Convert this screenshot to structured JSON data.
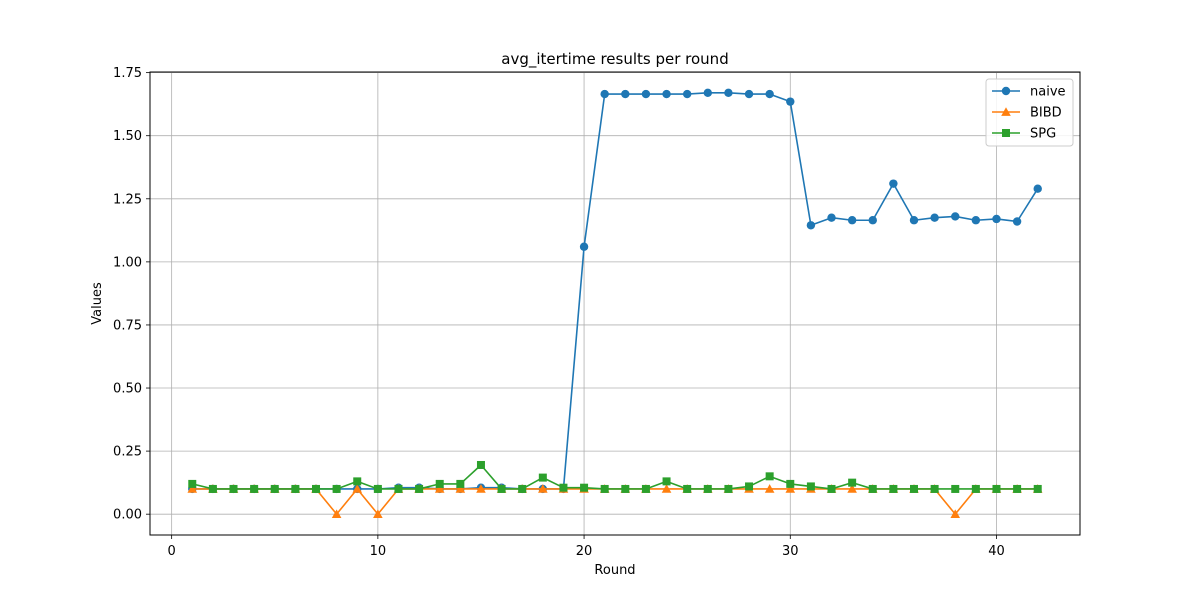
{
  "chart_data": {
    "type": "line",
    "title": "avg_itertime results per round",
    "xlabel": "Round",
    "ylabel": "Values",
    "xlim": [
      -1.05,
      44.05
    ],
    "ylim": [
      -0.0825,
      1.7525
    ],
    "xticks": [
      0,
      10,
      20,
      30,
      40
    ],
    "xtick_labels": [
      "0",
      "10",
      "20",
      "30",
      "40"
    ],
    "yticks": [
      0,
      0.25,
      0.5,
      0.75,
      1.0,
      1.25,
      1.5,
      1.75
    ],
    "ytick_labels": [
      "0.00",
      "0.25",
      "0.50",
      "0.75",
      "1.00",
      "1.25",
      "1.50",
      "1.75"
    ],
    "grid": true,
    "legend_position": "top-right",
    "x": [
      1,
      2,
      3,
      4,
      5,
      6,
      7,
      8,
      9,
      10,
      11,
      12,
      13,
      14,
      15,
      16,
      17,
      18,
      19,
      20,
      21,
      22,
      23,
      24,
      25,
      26,
      27,
      28,
      29,
      30,
      31,
      32,
      33,
      34,
      35,
      36,
      37,
      38,
      39,
      40,
      41,
      42
    ],
    "series": [
      {
        "name": "naive",
        "color": "#1f77b4",
        "marker": "circle",
        "values": [
          0.1,
          0.1,
          0.1,
          0.1,
          0.1,
          0.1,
          0.1,
          0.1,
          0.1,
          0.1,
          0.105,
          0.105,
          0.1,
          0.1,
          0.105,
          0.105,
          0.1,
          0.1,
          0.1,
          1.06,
          1.665,
          1.665,
          1.665,
          1.665,
          1.665,
          1.67,
          1.67,
          1.665,
          1.665,
          1.635,
          1.145,
          1.175,
          1.165,
          1.165,
          1.31,
          1.165,
          1.175,
          1.18,
          1.165,
          1.17,
          1.16,
          1.29
        ]
      },
      {
        "name": "BIBD",
        "color": "#ff7f0e",
        "marker": "triangle",
        "values": [
          0.1,
          0.1,
          0.1,
          0.1,
          0.1,
          0.1,
          0.1,
          0.0,
          0.1,
          0.0,
          0.1,
          0.1,
          0.1,
          0.1,
          0.1,
          0.1,
          0.1,
          0.1,
          0.1,
          0.1,
          0.1,
          0.1,
          0.1,
          0.1,
          0.1,
          0.1,
          0.1,
          0.1,
          0.1,
          0.1,
          0.1,
          0.1,
          0.1,
          0.1,
          0.1,
          0.1,
          0.1,
          0.0,
          0.1,
          0.1,
          0.1,
          0.1
        ]
      },
      {
        "name": "SPG",
        "color": "#2ca02c",
        "marker": "square",
        "values": [
          0.12,
          0.1,
          0.1,
          0.1,
          0.1,
          0.1,
          0.1,
          0.1,
          0.13,
          0.1,
          0.1,
          0.1,
          0.12,
          0.12,
          0.195,
          0.1,
          0.1,
          0.145,
          0.105,
          0.105,
          0.1,
          0.1,
          0.1,
          0.13,
          0.1,
          0.1,
          0.1,
          0.11,
          0.15,
          0.12,
          0.11,
          0.1,
          0.125,
          0.1,
          0.1,
          0.1,
          0.1,
          0.1,
          0.1,
          0.1,
          0.1,
          0.1
        ]
      }
    ]
  }
}
